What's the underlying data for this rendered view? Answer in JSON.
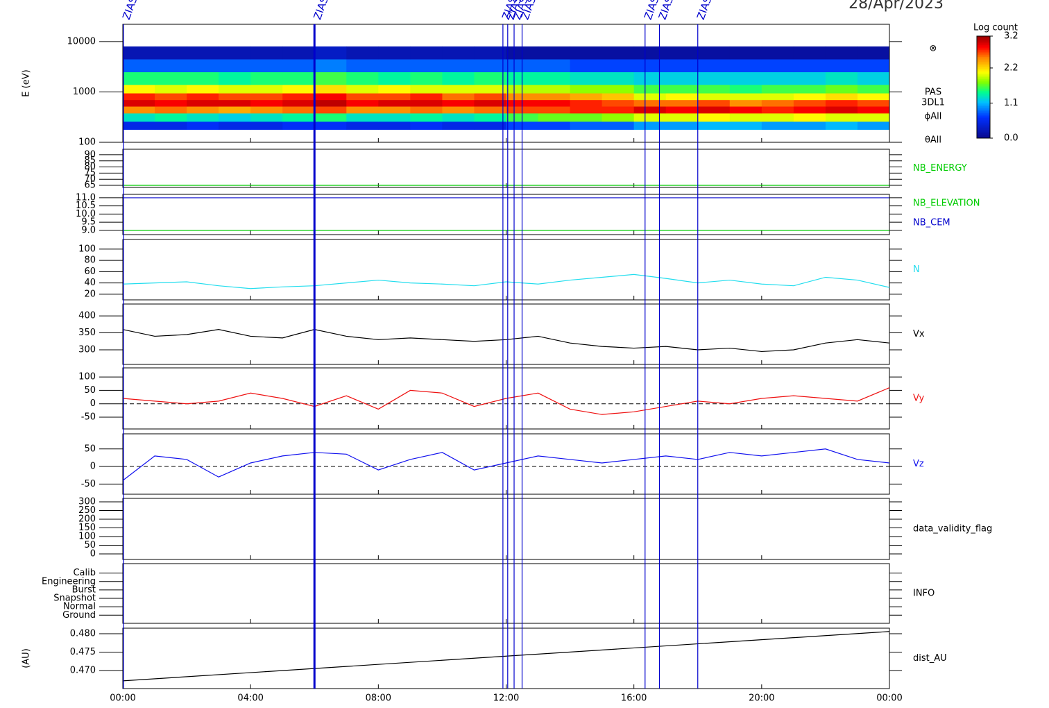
{
  "date": "28/Apr/2023",
  "events": [
    {
      "x": 0.02,
      "label": "ZIAS"
    },
    {
      "x": 6.0,
      "label": "ZIAS"
    },
    {
      "x": 11.9,
      "label": "ZIAS"
    },
    {
      "x": 12.05,
      "label": "ZIAS"
    },
    {
      "x": 12.25,
      "label": "ZIAS"
    },
    {
      "x": 12.5,
      "label": "ZIAS"
    },
    {
      "x": 16.35,
      "label": "ZIAS"
    },
    {
      "x": 16.8,
      "label": "ZIAS"
    },
    {
      "x": 18.0,
      "label": "ZIAS"
    }
  ],
  "chart_data": [
    {
      "type": "heatmap",
      "ylabel": "E (eV)",
      "ylog": true,
      "ylim": [
        100,
        22000
      ],
      "yticks": [
        100,
        1000,
        10000
      ],
      "labels": [
        "⊗",
        "PAS",
        "3DL1",
        "ϕAll",
        "θAll"
      ],
      "xbins": [
        0,
        1,
        2,
        3,
        4,
        5,
        6,
        7,
        8,
        9,
        10,
        11,
        12,
        13,
        14,
        15,
        16,
        17,
        18,
        19,
        20,
        21,
        22,
        23,
        24
      ],
      "ybins": [
        180,
        260,
        380,
        520,
        700,
        950,
        1400,
        2500,
        4500,
        8000
      ],
      "z": [
        [
          0.5,
          0.5,
          0.6,
          0.5,
          0.5,
          0.6,
          0.6,
          0.5,
          0.5,
          0.6,
          0.5,
          0.5,
          0.7,
          0.7,
          0.8,
          0.8,
          1.0,
          1.0,
          1.1,
          1.1,
          1.0,
          1.0,
          1.1,
          1.0
        ],
        [
          1.3,
          1.4,
          1.3,
          1.2,
          1.3,
          1.4,
          1.5,
          1.3,
          1.3,
          1.4,
          1.3,
          1.4,
          1.6,
          1.7,
          1.7,
          1.8,
          2.0,
          2.0,
          2.1,
          2.0,
          2.0,
          2.1,
          2.0,
          2.0
        ],
        [
          2.5,
          2.6,
          2.5,
          2.4,
          2.5,
          2.6,
          2.7,
          2.5,
          2.5,
          2.6,
          2.5,
          2.6,
          2.7,
          2.7,
          2.8,
          2.8,
          3.0,
          2.9,
          3.0,
          2.9,
          2.8,
          2.9,
          3.0,
          2.9
        ],
        [
          3.0,
          2.9,
          3.0,
          3.0,
          2.9,
          3.0,
          3.1,
          2.9,
          3.0,
          3.0,
          2.9,
          3.0,
          2.9,
          2.9,
          2.8,
          2.7,
          2.6,
          2.6,
          2.7,
          2.5,
          2.6,
          2.7,
          2.8,
          2.7
        ],
        [
          2.8,
          2.7,
          2.8,
          2.7,
          2.7,
          2.8,
          2.9,
          2.7,
          2.7,
          2.8,
          2.6,
          2.7,
          2.5,
          2.5,
          2.4,
          2.3,
          2.0,
          2.1,
          2.0,
          2.0,
          2.0,
          2.1,
          2.2,
          2.1
        ],
        [
          2.1,
          2.0,
          2.1,
          2.0,
          2.0,
          2.1,
          2.2,
          2.0,
          2.1,
          2.0,
          2.0,
          2.0,
          1.9,
          1.9,
          1.8,
          1.8,
          1.6,
          1.6,
          1.6,
          1.5,
          1.6,
          1.6,
          1.7,
          1.6
        ],
        [
          1.5,
          1.5,
          1.5,
          1.4,
          1.5,
          1.5,
          1.6,
          1.5,
          1.4,
          1.5,
          1.4,
          1.5,
          1.4,
          1.4,
          1.3,
          1.3,
          1.2,
          1.2,
          1.2,
          1.2,
          1.2,
          1.2,
          1.3,
          1.2
        ],
        [
          0.8,
          0.8,
          0.8,
          0.8,
          0.8,
          0.8,
          0.9,
          0.8,
          0.8,
          0.8,
          0.8,
          0.8,
          0.8,
          0.8,
          0.7,
          0.7,
          0.7,
          0.7,
          0.7,
          0.7,
          0.7,
          0.7,
          0.7,
          0.7
        ],
        [
          0.2,
          0.2,
          0.2,
          0.2,
          0.2,
          0.2,
          0.3,
          0.2,
          0.2,
          0.2,
          0.2,
          0.2,
          0.1,
          0.1,
          0.1,
          0.1,
          0.1,
          0.1,
          0.1,
          0.1,
          0.1,
          0.1,
          0.1,
          0.1
        ]
      ],
      "colorbar": {
        "label": "Log count",
        "clim": [
          0,
          3.2
        ],
        "ticks": [
          {
            "value": 0,
            "label": "0.0"
          },
          {
            "value": 1.1,
            "label": "1.1"
          },
          {
            "value": 2.2,
            "label": "2.2"
          },
          {
            "value": 3.2,
            "label": "3.2"
          }
        ]
      }
    },
    {
      "type": "line",
      "ylim": [
        63.3,
        94.5
      ],
      "yticks": [
        65,
        70,
        75,
        80,
        85,
        90
      ],
      "x": [
        0,
        24
      ],
      "series": [
        {
          "name": "NB_ENERGY",
          "color": "#00cc00",
          "values": [
            65,
            65
          ]
        }
      ]
    },
    {
      "type": "line",
      "ylim": [
        8.74,
        11.21
      ],
      "yticks": [
        {
          "value": 9,
          "label": "9.0"
        },
        {
          "value": 9.5,
          "label": "9.5"
        },
        {
          "value": 10,
          "label": "10.0"
        },
        {
          "value": 10.5,
          "label": "10.5"
        },
        {
          "value": 11,
          "label": "11.0"
        }
      ],
      "x": [
        0,
        24
      ],
      "series": [
        {
          "name": "NB_ELEVATION",
          "color": "#00cc00",
          "values": [
            9,
            9
          ]
        },
        {
          "name": "NB_CEM",
          "color": "#0000cc",
          "values": [
            11,
            11
          ]
        }
      ]
    },
    {
      "type": "line",
      "ylim": [
        10,
        117
      ],
      "yticks": [
        20,
        40,
        60,
        80,
        100
      ],
      "x": [
        0,
        1,
        2,
        3,
        4,
        5,
        6,
        7,
        8,
        9,
        10,
        11,
        12,
        13,
        14,
        15,
        16,
        17,
        18,
        19,
        20,
        21,
        22,
        23,
        24
      ],
      "series": [
        {
          "name": "N",
          "color": "#22ddee",
          "values": [
            38,
            40,
            42,
            35,
            30,
            33,
            35,
            40,
            45,
            40,
            38,
            35,
            42,
            38,
            45,
            50,
            55,
            48,
            40,
            45,
            38,
            35,
            50,
            45,
            32
          ]
        }
      ]
    },
    {
      "type": "line",
      "ylim": [
        257,
        435
      ],
      "yticks": [
        300,
        350,
        400
      ],
      "x": [
        0,
        1,
        2,
        3,
        4,
        5,
        6,
        7,
        8,
        9,
        10,
        11,
        12,
        13,
        14,
        15,
        16,
        17,
        18,
        19,
        20,
        21,
        22,
        23,
        24
      ],
      "series": [
        {
          "name": "Vx",
          "color": "#000000",
          "values": [
            360,
            340,
            345,
            360,
            340,
            335,
            360,
            340,
            330,
            335,
            330,
            325,
            330,
            340,
            320,
            310,
            305,
            310,
            300,
            305,
            295,
            300,
            320,
            330,
            320
          ]
        }
      ]
    },
    {
      "type": "line",
      "zero_line": true,
      "ylim": [
        -94,
        134
      ],
      "yticks": [
        -50,
        0,
        50,
        100
      ],
      "x": [
        0,
        1,
        2,
        3,
        4,
        5,
        6,
        7,
        8,
        9,
        10,
        11,
        12,
        13,
        14,
        15,
        16,
        17,
        18,
        19,
        20,
        21,
        22,
        23,
        24
      ],
      "series": [
        {
          "name": "Vy",
          "color": "#ee1111",
          "values": [
            20,
            10,
            0,
            10,
            40,
            20,
            -10,
            30,
            -20,
            50,
            40,
            -10,
            20,
            40,
            -20,
            -40,
            -30,
            -10,
            10,
            0,
            20,
            30,
            20,
            10,
            60
          ]
        }
      ]
    },
    {
      "type": "line",
      "zero_line": true,
      "ylim": [
        -79,
        93
      ],
      "yticks": [
        -50,
        0,
        50
      ],
      "x": [
        0,
        1,
        2,
        3,
        4,
        5,
        6,
        7,
        8,
        9,
        10,
        11,
        12,
        13,
        14,
        15,
        16,
        17,
        18,
        19,
        20,
        21,
        22,
        23,
        24
      ],
      "series": [
        {
          "name": "Vz",
          "color": "#1111ee",
          "values": [
            -40,
            30,
            20,
            -30,
            10,
            30,
            40,
            35,
            -10,
            20,
            40,
            -10,
            10,
            30,
            20,
            10,
            20,
            30,
            20,
            40,
            30,
            40,
            50,
            20,
            10
          ]
        }
      ]
    },
    {
      "type": "line",
      "label": "data_validity_flag",
      "ylim": [
        -32,
        320
      ],
      "yticks": [
        0,
        50,
        100,
        150,
        200,
        250,
        300
      ]
    },
    {
      "type": "line",
      "label": "INFO",
      "ylim": [
        -0.97,
        6.13
      ],
      "yticks": [
        {
          "value": 0,
          "label": "Ground"
        },
        {
          "value": 1,
          "label": "Normal"
        },
        {
          "value": 2,
          "label": "Snapshot"
        },
        {
          "value": 3,
          "label": "Burst"
        },
        {
          "value": 4,
          "label": "Engineering"
        },
        {
          "value": 5,
          "label": "Calib"
        }
      ]
    },
    {
      "type": "line",
      "ylabel": "(AU)",
      "ylim": [
        0.4651,
        0.4815
      ],
      "yticks": [
        {
          "value": 0.47,
          "label": "0.470"
        },
        {
          "value": 0.475,
          "label": "0.475"
        },
        {
          "value": 0.48,
          "label": "0.480"
        }
      ],
      "x": [
        0,
        24
      ],
      "series": [
        {
          "name": "dist_AU",
          "color": "#000000",
          "values": [
            0.4672,
            0.4806
          ]
        }
      ],
      "xlim": [
        0,
        24
      ],
      "xticks": [
        {
          "value": 0,
          "label": "00:00"
        },
        {
          "value": 4,
          "label": "04:00"
        },
        {
          "value": 8,
          "label": "08:00"
        },
        {
          "value": 12,
          "label": "12:00"
        },
        {
          "value": 16,
          "label": "16:00"
        },
        {
          "value": 20,
          "label": "20:00"
        },
        {
          "value": 24,
          "label": "00:00"
        }
      ]
    }
  ]
}
